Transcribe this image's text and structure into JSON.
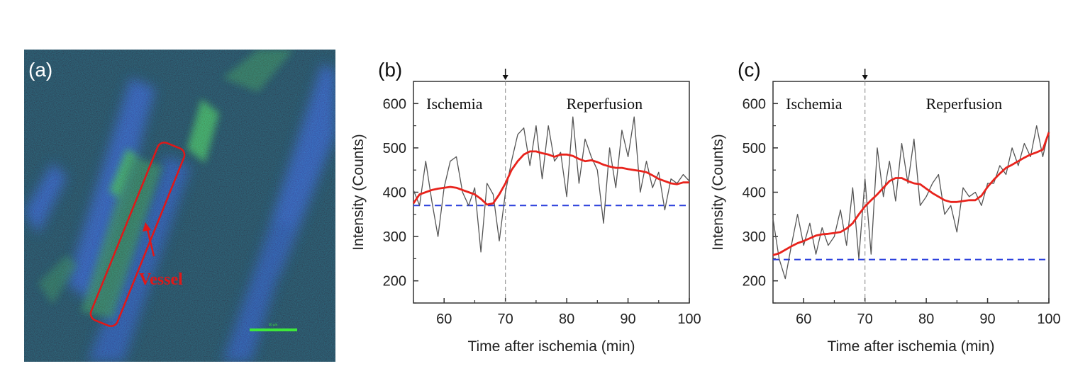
{
  "panel_a": {
    "label": "(a)",
    "annotation": "Vessel",
    "scalebar_label": "10 μm",
    "colors": {
      "background": "#0b2a3e",
      "blue_channel": "#2846d8",
      "green_channel": "#3ec83a",
      "annotation": "#e01818"
    }
  },
  "chart_data": [
    {
      "type": "line",
      "panel_label": "(b)",
      "xlabel": "Time after ischemia (min)",
      "ylabel": "Intensity (Counts)",
      "xlim": [
        55,
        100
      ],
      "ylim": [
        150,
        650
      ],
      "xticks": [
        60,
        70,
        80,
        90,
        100
      ],
      "yticks": [
        200,
        300,
        400,
        500,
        600
      ],
      "region_labels": [
        "Ischemia",
        "Reperfusion"
      ],
      "reperfusion_time": 70,
      "baseline": 370,
      "series": [
        {
          "role": "raw",
          "color": "#555555",
          "x": [
            55,
            56,
            57,
            58,
            59,
            60,
            61,
            62,
            63,
            64,
            65,
            66,
            67,
            68,
            69,
            70,
            71,
            72,
            73,
            74,
            75,
            76,
            77,
            78,
            79,
            80,
            81,
            82,
            83,
            84,
            85,
            86,
            87,
            88,
            89,
            90,
            91,
            92,
            93,
            94,
            95,
            96,
            97,
            98,
            99,
            100
          ],
          "y": [
            405,
            370,
            470,
            380,
            300,
            410,
            470,
            480,
            400,
            370,
            410,
            265,
            420,
            395,
            290,
            400,
            470,
            530,
            545,
            460,
            550,
            430,
            550,
            470,
            490,
            390,
            570,
            420,
            520,
            480,
            450,
            330,
            500,
            410,
            540,
            480,
            570,
            400,
            470,
            410,
            445,
            360,
            430,
            420,
            440,
            425
          ]
        },
        {
          "role": "smoothed",
          "color": "#e8231c",
          "x": [
            55,
            56,
            57,
            58,
            59,
            60,
            61,
            62,
            63,
            64,
            65,
            66,
            67,
            68,
            69,
            70,
            71,
            72,
            73,
            74,
            75,
            76,
            77,
            78,
            79,
            80,
            81,
            82,
            83,
            84,
            85,
            86,
            87,
            88,
            89,
            90,
            91,
            92,
            93,
            94,
            95,
            96,
            97,
            98,
            99,
            100
          ],
          "y": [
            375,
            395,
            400,
            405,
            408,
            410,
            412,
            410,
            405,
            400,
            395,
            385,
            372,
            375,
            395,
            420,
            450,
            470,
            485,
            492,
            492,
            488,
            485,
            480,
            485,
            485,
            482,
            475,
            470,
            472,
            468,
            462,
            458,
            455,
            455,
            452,
            450,
            448,
            445,
            438,
            430,
            425,
            420,
            418,
            422,
            422
          ]
        }
      ]
    },
    {
      "type": "line",
      "panel_label": "(c)",
      "xlabel": "Time after ischemia (min)",
      "ylabel": "Intensity (Counts)",
      "xlim": [
        55,
        100
      ],
      "ylim": [
        150,
        650
      ],
      "xticks": [
        60,
        70,
        80,
        90,
        100
      ],
      "yticks": [
        200,
        300,
        400,
        500,
        600
      ],
      "region_labels": [
        "Ischemia",
        "Reperfusion"
      ],
      "reperfusion_time": 70,
      "baseline": 248,
      "series": [
        {
          "role": "raw",
          "color": "#555555",
          "x": [
            55,
            56,
            57,
            58,
            59,
            60,
            61,
            62,
            63,
            64,
            65,
            66,
            67,
            68,
            69,
            70,
            71,
            72,
            73,
            74,
            75,
            76,
            77,
            78,
            79,
            80,
            81,
            82,
            83,
            84,
            85,
            86,
            87,
            88,
            89,
            90,
            91,
            92,
            93,
            94,
            95,
            96,
            97,
            98,
            99,
            100
          ],
          "y": [
            340,
            250,
            205,
            280,
            350,
            280,
            330,
            260,
            320,
            280,
            300,
            360,
            280,
            410,
            250,
            430,
            260,
            500,
            390,
            470,
            380,
            510,
            420,
            520,
            370,
            390,
            420,
            440,
            350,
            370,
            310,
            410,
            390,
            400,
            370,
            420,
            420,
            460,
            440,
            500,
            460,
            510,
            480,
            550,
            480,
            540
          ]
        },
        {
          "role": "smoothed",
          "color": "#e8231c",
          "x": [
            55,
            56,
            57,
            58,
            59,
            60,
            61,
            62,
            63,
            64,
            65,
            66,
            67,
            68,
            69,
            70,
            71,
            72,
            73,
            74,
            75,
            76,
            77,
            78,
            79,
            80,
            81,
            82,
            83,
            84,
            85,
            86,
            87,
            88,
            89,
            90,
            91,
            92,
            93,
            94,
            95,
            96,
            97,
            98,
            99,
            100
          ],
          "y": [
            258,
            262,
            270,
            278,
            285,
            290,
            296,
            302,
            305,
            306,
            308,
            310,
            318,
            330,
            350,
            368,
            382,
            395,
            410,
            425,
            432,
            432,
            425,
            420,
            418,
            408,
            398,
            390,
            382,
            378,
            378,
            380,
            382,
            382,
            392,
            412,
            428,
            442,
            455,
            462,
            470,
            478,
            485,
            490,
            496,
            535
          ]
        }
      ]
    }
  ]
}
